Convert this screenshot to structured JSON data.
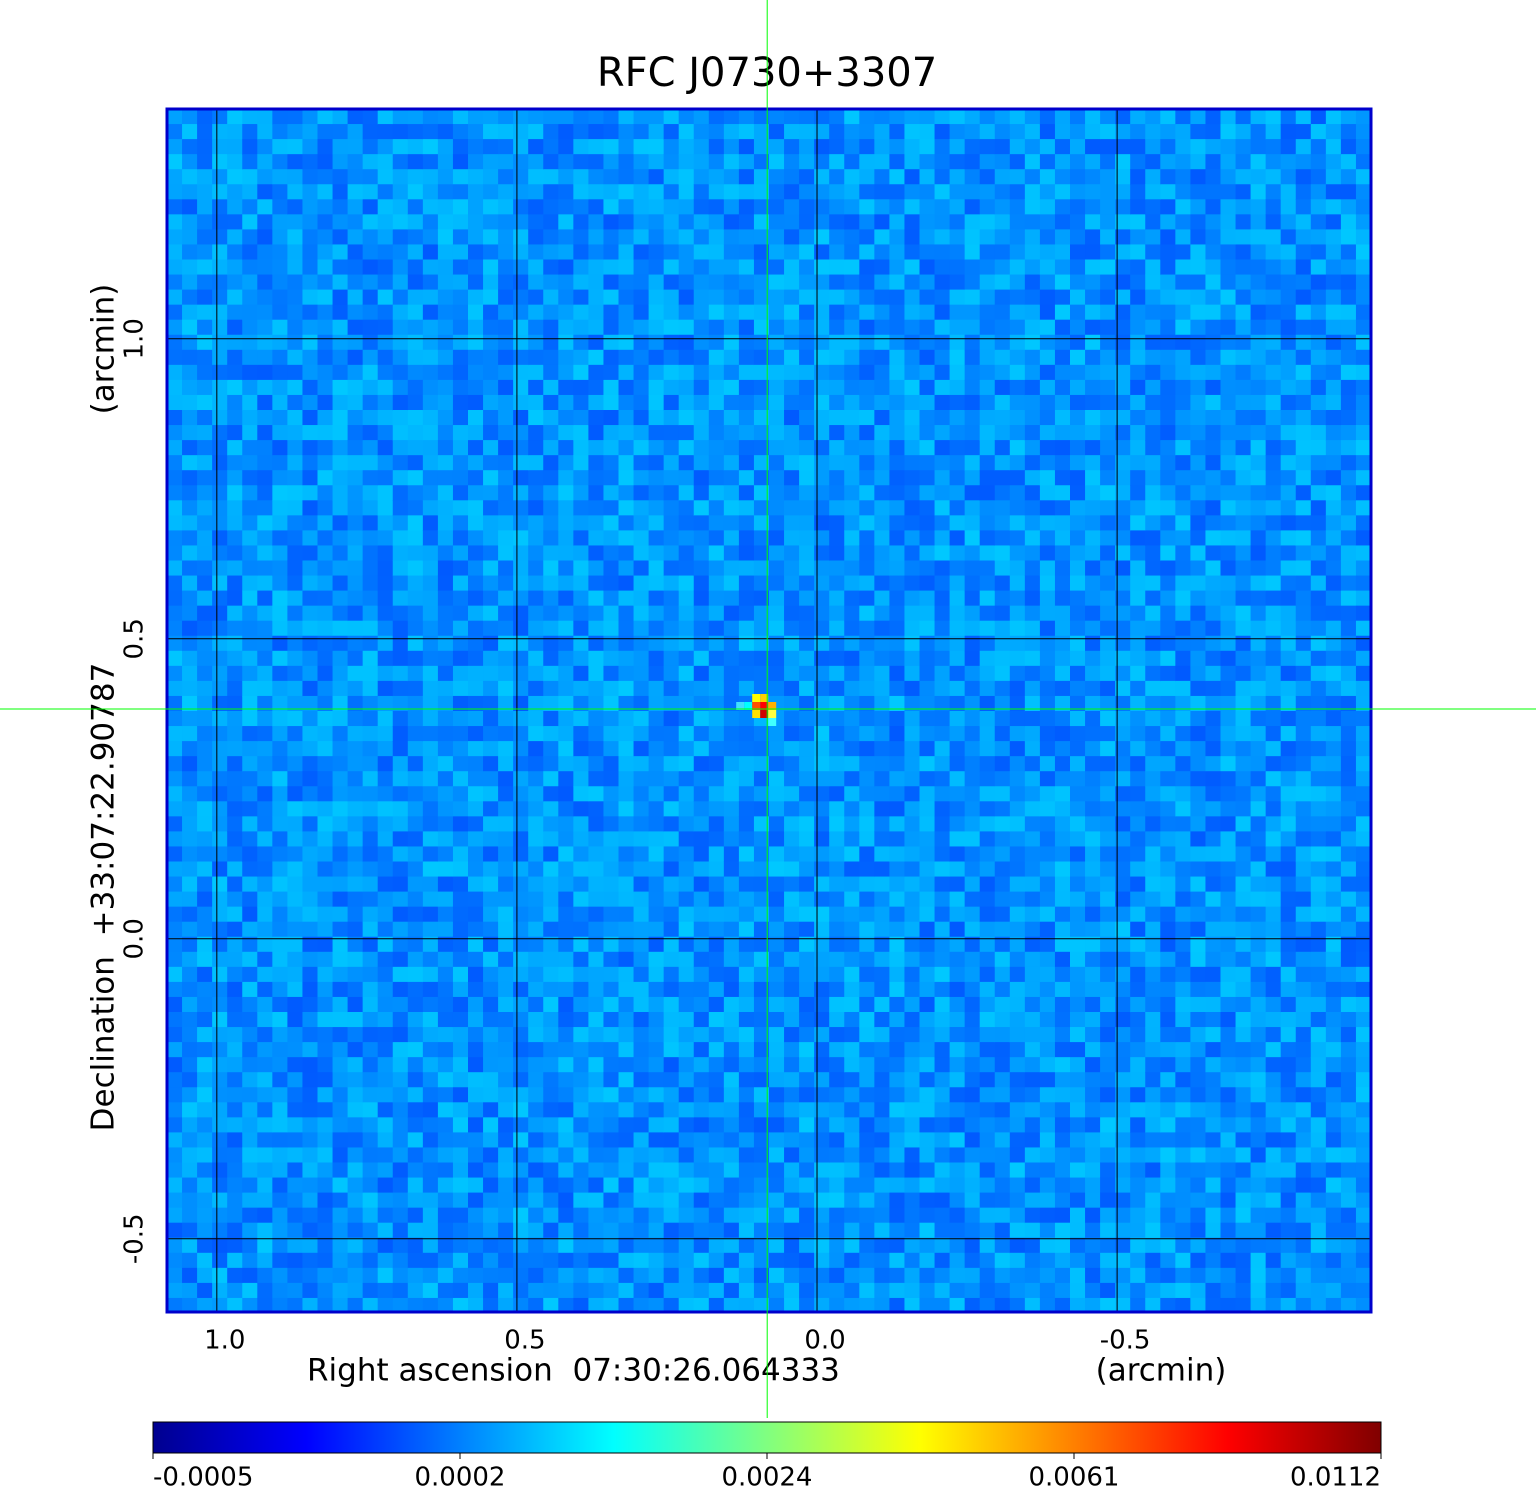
{
  "chart_data": {
    "type": "image",
    "title": "RFC J0730+3307",
    "title_color": "#0000cc",
    "xlabel": "Right ascension  07:30:26.064333",
    "xunit": "(arcmin)",
    "ylabel": "Declination  +33:07:22.90787",
    "yunit": "(arcmin)",
    "xlim": [
      1.083,
      -0.923
    ],
    "ylim": [
      -0.622,
      1.383
    ],
    "xticks": [
      {
        "value": 1,
        "label": "1.0"
      },
      0.5,
      {
        "value": 0,
        "label": "0.0"
      },
      -0.5
    ],
    "yticks": [
      -0.5,
      {
        "value": 0,
        "label": "0.0"
      },
      0.5,
      {
        "value": 1,
        "label": "1.0"
      }
    ],
    "grid": true,
    "frame_color": "#0000cc",
    "crosshair": {
      "x": 0.083,
      "y": 0.383,
      "color": "#00ff00"
    },
    "colormap": [
      "#00008f",
      "#0000ff",
      "#0080ff",
      "#00ffff",
      "#80ff80",
      "#ffff00",
      "#ff8000",
      "#ff0000",
      "#800000"
    ],
    "colorbar_ticks": [
      -0.0005,
      0.0002,
      0.0024,
      0.0061,
      0.0112
    ]
  }
}
